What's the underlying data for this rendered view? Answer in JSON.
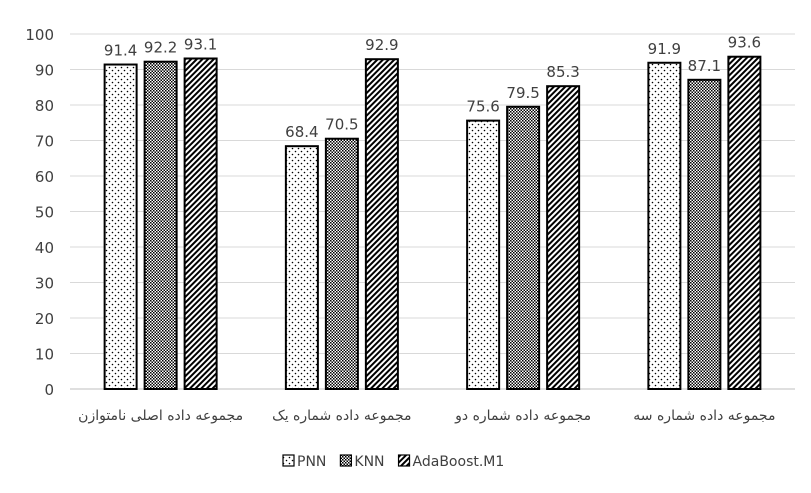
{
  "chart_data": {
    "type": "bar",
    "categories": [
      "مجموعه داده اصلی نامتوازن",
      "مجموعه داده شماره یک",
      "مجموعه داده شماره دو",
      "مجموعه داده شماره سه"
    ],
    "series": [
      {
        "name": "PNN",
        "values": [
          91.4,
          68.4,
          75.6,
          91.9
        ],
        "pattern": "dots"
      },
      {
        "name": "KNN",
        "values": [
          92.2,
          70.5,
          79.5,
          87.1
        ],
        "pattern": "checker"
      },
      {
        "name": "AdaBoost.M1",
        "values": [
          93.1,
          92.9,
          85.3,
          93.6
        ],
        "pattern": "diagonal"
      }
    ],
    "ylim": [
      0,
      100
    ],
    "yticks": [
      0,
      10,
      20,
      30,
      40,
      50,
      60,
      70,
      80,
      90,
      100
    ],
    "grid": true,
    "data_labels": true,
    "legend": "bottom",
    "colors": {
      "bar_stroke": "#000000",
      "grid": "#d9d9d9",
      "text": "#404040"
    }
  }
}
